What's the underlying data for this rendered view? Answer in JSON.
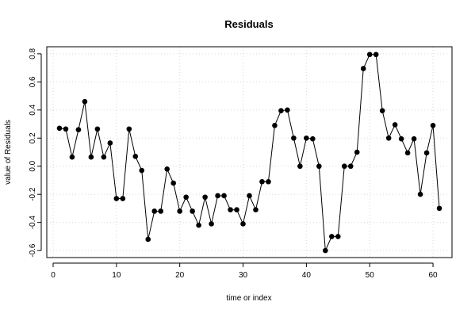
{
  "chart_data": {
    "type": "line",
    "title": "Residuals",
    "xlabel": "time or index",
    "ylabel": "value of Residuals",
    "xlim": [
      -1,
      63
    ],
    "ylim": [
      -0.65,
      0.85
    ],
    "x_ticks": [
      0,
      10,
      20,
      30,
      40,
      50,
      60
    ],
    "y_ticks": [
      -0.6,
      -0.4,
      -0.2,
      0.0,
      0.2,
      0.4,
      0.6,
      0.8
    ],
    "y_tick_labels": [
      "-0.6",
      "-0.4",
      "-0.2",
      "0.0",
      "0.2",
      "0.4",
      "0.6",
      "0.8"
    ],
    "grid": true,
    "markers": true,
    "series": [
      {
        "x": [
          1,
          2,
          3,
          4,
          5,
          6,
          7,
          8,
          9,
          10,
          11,
          12,
          13,
          14,
          15,
          16,
          17,
          18,
          19,
          20,
          21,
          22,
          23,
          24,
          25,
          26,
          27,
          28,
          29,
          30,
          31,
          32,
          33,
          34,
          35,
          36,
          37,
          38,
          39,
          40,
          41,
          42,
          43,
          44,
          45,
          46,
          47,
          48,
          49,
          50,
          51,
          52,
          53,
          54,
          55,
          56,
          57,
          58,
          59,
          60,
          61
        ],
        "values": [
          0.27,
          0.265,
          0.065,
          0.26,
          0.46,
          0.065,
          0.265,
          0.065,
          0.165,
          -0.23,
          -0.23,
          0.265,
          0.07,
          -0.03,
          -0.52,
          -0.32,
          -0.32,
          -0.02,
          -0.12,
          -0.32,
          -0.22,
          -0.32,
          -0.42,
          -0.22,
          -0.41,
          -0.21,
          -0.21,
          -0.31,
          -0.31,
          -0.41,
          -0.21,
          -0.31,
          -0.11,
          -0.11,
          0.29,
          0.395,
          0.4,
          0.2,
          0.0,
          0.2,
          0.195,
          0.0,
          -0.6,
          -0.5,
          -0.5,
          0.0,
          0.0,
          0.1,
          0.695,
          0.795,
          0.795,
          0.395,
          0.2,
          0.295,
          0.195,
          0.095,
          0.195,
          -0.2,
          0.095,
          0.29,
          -0.3
        ]
      }
    ]
  }
}
